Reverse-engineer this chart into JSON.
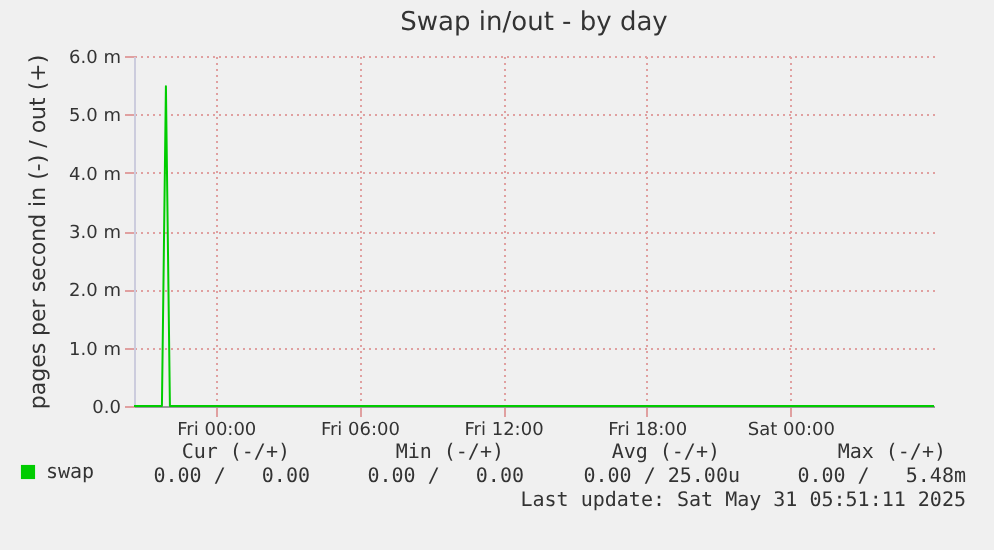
{
  "chart_data": {
    "type": "line",
    "title": "Swap in/out - by day",
    "ylabel": "pages per second in (-) / out (+)",
    "x": [
      "2025-05-29T20:35",
      "2025-05-29T21:45",
      "2025-05-29T21:55",
      "2025-05-29T22:05",
      "2025-05-31T06:00"
    ],
    "series": [
      {
        "name": "swap",
        "color": "#00cc00",
        "values": [
          0,
          0,
          5.48,
          0,
          0
        ]
      }
    ],
    "xlim": [
      "2025-05-29T20:35",
      "2025-05-31T06:00"
    ],
    "xticks": [
      {
        "value": "2025-05-30T00:00",
        "label": "Fri 00:00"
      },
      {
        "value": "2025-05-30T06:00",
        "label": "Fri 06:00"
      },
      {
        "value": "2025-05-30T12:00",
        "label": "Fri 12:00"
      },
      {
        "value": "2025-05-30T18:00",
        "label": "Fri 18:00"
      },
      {
        "value": "2025-05-31T00:00",
        "label": "Sat 00:00"
      }
    ],
    "ylim": [
      0,
      6
    ],
    "yticks": [
      {
        "value": 0,
        "label": "0.0"
      },
      {
        "value": 1,
        "label": "1.0 m"
      },
      {
        "value": 2,
        "label": "2.0 m"
      },
      {
        "value": 3,
        "label": "3.0 m"
      },
      {
        "value": 4,
        "label": "4.0 m"
      },
      {
        "value": 5,
        "label": "5.0 m"
      },
      {
        "value": 6,
        "label": "6.0 m"
      }
    ],
    "grid": true,
    "legend": "bottom left",
    "annotations": [
      "Cur (-/+)",
      "Min (-/+)",
      "Avg (-/+)",
      "Max (-/+)",
      "0.00 /   0.00",
      "0.00 /   0.00",
      "0.00 / 25.00u",
      "0.00 /   5.48m",
      "Last update: Sat May 31 05:51:11 2025"
    ]
  }
}
